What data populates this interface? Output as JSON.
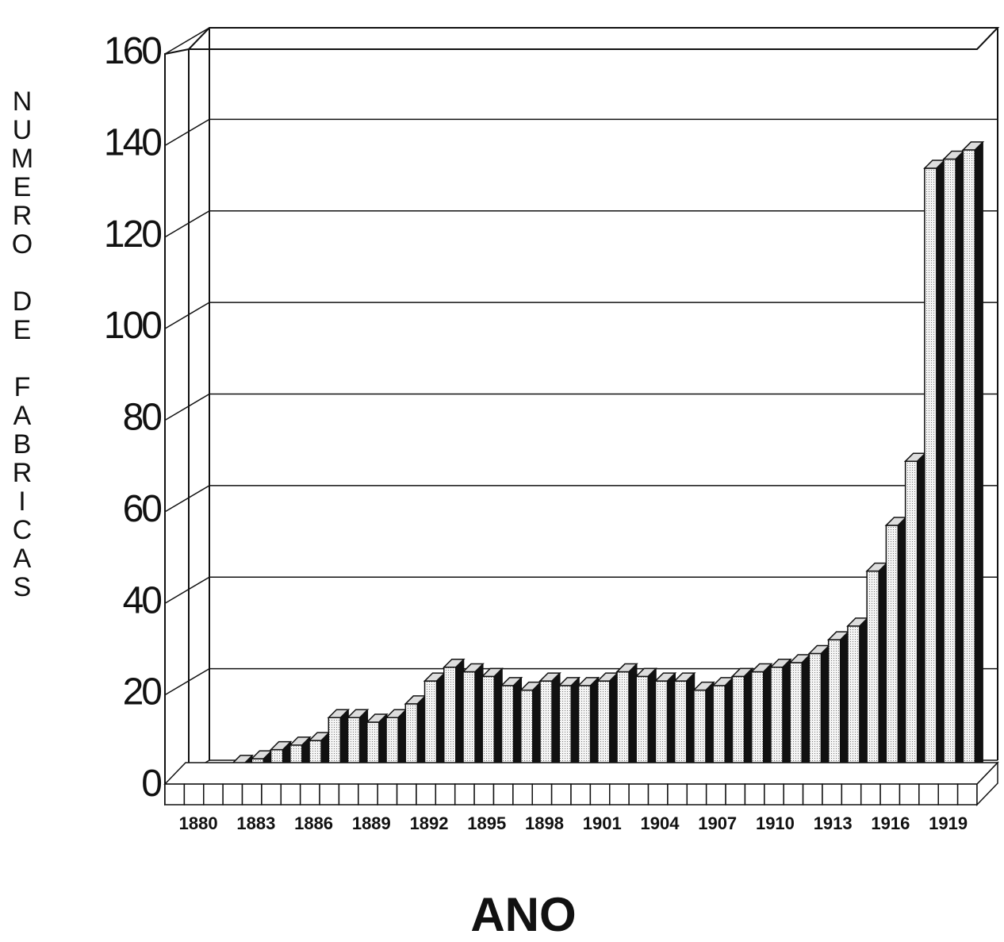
{
  "chart_data": {
    "type": "bar",
    "title": "",
    "xlabel": "ANO",
    "ylabel": "NUMERO DE FABRICAS",
    "ylim": [
      0,
      160
    ],
    "yticks": [
      0,
      20,
      40,
      60,
      80,
      100,
      120,
      140,
      160
    ],
    "grid": true,
    "x": [
      1880,
      1881,
      1882,
      1883,
      1884,
      1885,
      1886,
      1887,
      1888,
      1889,
      1890,
      1891,
      1892,
      1893,
      1894,
      1895,
      1896,
      1897,
      1898,
      1899,
      1900,
      1901,
      1902,
      1903,
      1904,
      1905,
      1906,
      1907,
      1908,
      1909,
      1910,
      1911,
      1912,
      1913,
      1914,
      1915,
      1916,
      1917,
      1918,
      1919,
      1920
    ],
    "xtick_labels": [
      "1880",
      "1883",
      "1886",
      "1889",
      "1892",
      "1895",
      "1898",
      "1901",
      "1904",
      "1907",
      "1910",
      "1913",
      "1916",
      "1919"
    ],
    "values": [
      1,
      1,
      4,
      5,
      7,
      8,
      9,
      14,
      14,
      13,
      14,
      17,
      22,
      25,
      24,
      23,
      21,
      20,
      22,
      21,
      21,
      22,
      24,
      23,
      22,
      22,
      20,
      21,
      23,
      24,
      25,
      26,
      28,
      31,
      34,
      46,
      56,
      70,
      134,
      136,
      138
    ]
  }
}
